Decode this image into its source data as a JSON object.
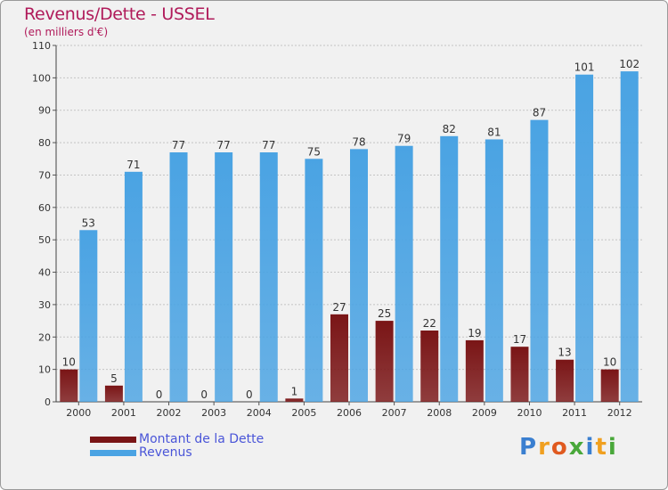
{
  "header": {
    "title": "Revenus/Dette - USSEL",
    "subtitle": "(en milliers d'€)"
  },
  "chart_data": {
    "type": "bar",
    "title": "Revenus/Dette - USSEL",
    "subtitle": "(en milliers d'€)",
    "categories": [
      "2000",
      "2001",
      "2002",
      "2003",
      "2004",
      "2005",
      "2006",
      "2007",
      "2008",
      "2009",
      "2010",
      "2011",
      "2012"
    ],
    "series": [
      {
        "name": "Montant de la Dette",
        "color": "#7a1516",
        "values": [
          10,
          5,
          0,
          0,
          0,
          1,
          27,
          25,
          22,
          19,
          17,
          13,
          10
        ]
      },
      {
        "name": "Revenus",
        "color": "#4aa3e3",
        "values": [
          53,
          71,
          77,
          77,
          77,
          75,
          78,
          79,
          82,
          81,
          87,
          101,
          102
        ]
      }
    ],
    "ylim": [
      0,
      110
    ],
    "yticks": [
      0,
      10,
      20,
      30,
      40,
      50,
      60,
      70,
      80,
      90,
      100,
      110
    ],
    "grid": true,
    "legend_position": "bottom-left"
  },
  "logo": {
    "letters": [
      {
        "char": "P",
        "color": "#3a7fd0"
      },
      {
        "char": "r",
        "color": "#f0a020"
      },
      {
        "char": "o",
        "color": "#e05a20"
      },
      {
        "char": "x",
        "color": "#49a83a"
      },
      {
        "char": "i",
        "color": "#3a7fd0"
      },
      {
        "char": "t",
        "color": "#f0a020"
      },
      {
        "char": "i",
        "color": "#49a83a"
      }
    ]
  }
}
